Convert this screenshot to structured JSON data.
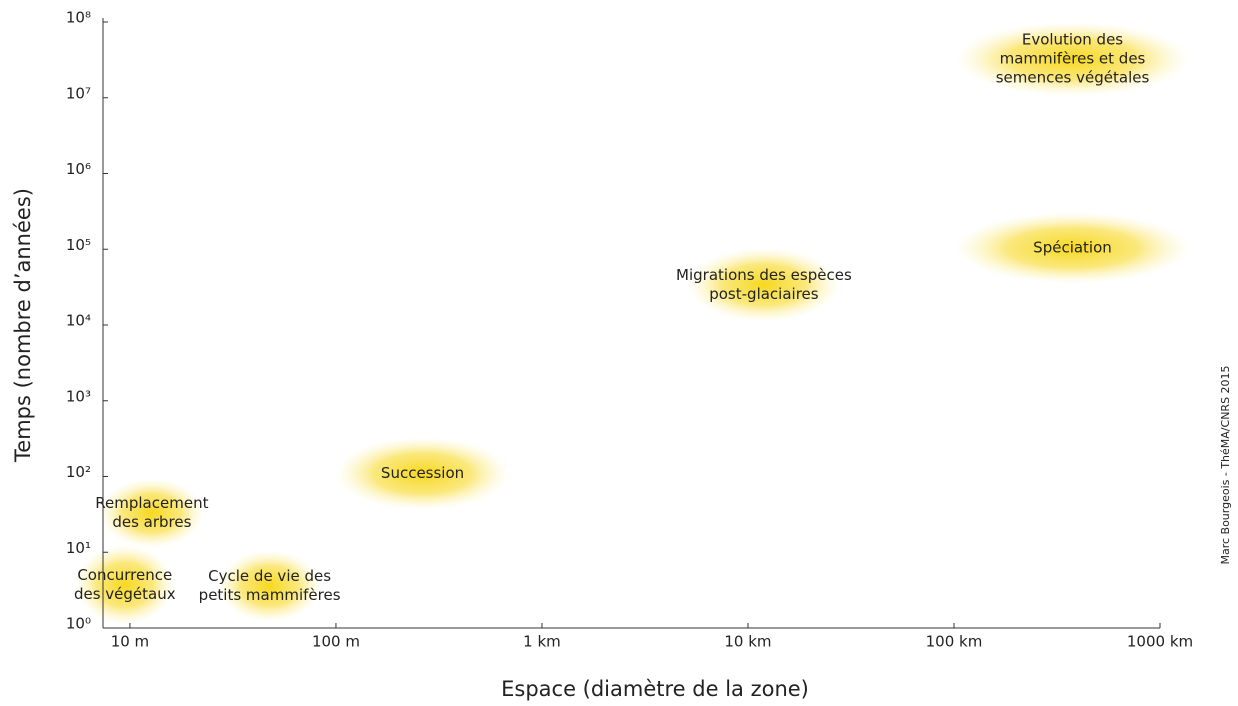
{
  "chart_data": {
    "type": "range-ellipses",
    "x_label": "Espace (diamètre de la zone)",
    "y_label": "Temps (nombre d’années)",
    "credit": "Marc Bourgeois - ThéMA/CNRS 2015",
    "xscale": "log",
    "yscale": "log",
    "xlim": [
      7.4,
      1000000
    ],
    "ylim": [
      1,
      100000000
    ],
    "xticks": [
      {
        "value": 10,
        "label": "10 m"
      },
      {
        "value": 100,
        "label": "100 m"
      },
      {
        "value": 1000,
        "label": "1 km"
      },
      {
        "value": 10000,
        "label": "10 km"
      },
      {
        "value": 100000,
        "label": "100 km"
      },
      {
        "value": 1000000,
        "label": "1000 km"
      }
    ],
    "yticks": [
      {
        "value": 1,
        "label": "10⁰"
      },
      {
        "value": 10,
        "label": "10¹"
      },
      {
        "value": 100,
        "label": "10²"
      },
      {
        "value": 1000,
        "label": "10³"
      },
      {
        "value": 10000,
        "label": "10⁴"
      },
      {
        "value": 100000,
        "label": "10⁵"
      },
      {
        "value": 1000000,
        "label": "10⁶"
      },
      {
        "value": 10000000,
        "label": "10⁷"
      },
      {
        "value": 100000000,
        "label": "10⁸"
      }
    ],
    "color": "#f7d81e",
    "items": [
      {
        "label": [
          "Concurrence",
          "des végétaux"
        ],
        "x": [
          5.4,
          16.5
        ],
        "y": [
          1.1,
          12.5
        ]
      },
      {
        "label": [
          "Remplacement",
          "des arbres"
        ],
        "x": [
          7.1,
          23
        ],
        "y": [
          11.4,
          95
        ]
      },
      {
        "label": [
          "Cycle de vie des",
          "petits mammifères"
        ],
        "x": [
          26.7,
          85
        ],
        "y": [
          1.2,
          10.7
        ]
      },
      {
        "label": [
          "Succession"
        ],
        "x": [
          99,
          700
        ],
        "y": [
          36,
          331
        ]
      },
      {
        "label": [
          "Migrations des espèces",
          "post-glaciaires"
        ],
        "x": [
          5100,
          28000
        ],
        "y": [
          11000,
          105000
        ]
      },
      {
        "label": [
          "Spéciation"
        ],
        "x": [
          101000,
          1400000
        ],
        "y": [
          35000,
          310000
        ]
      },
      {
        "label": [
          "Evolution des",
          "mammifères et des",
          "semences végétales"
        ],
        "x": [
          101000,
          1400000
        ],
        "y": [
          10500000,
          100000000
        ]
      }
    ]
  }
}
